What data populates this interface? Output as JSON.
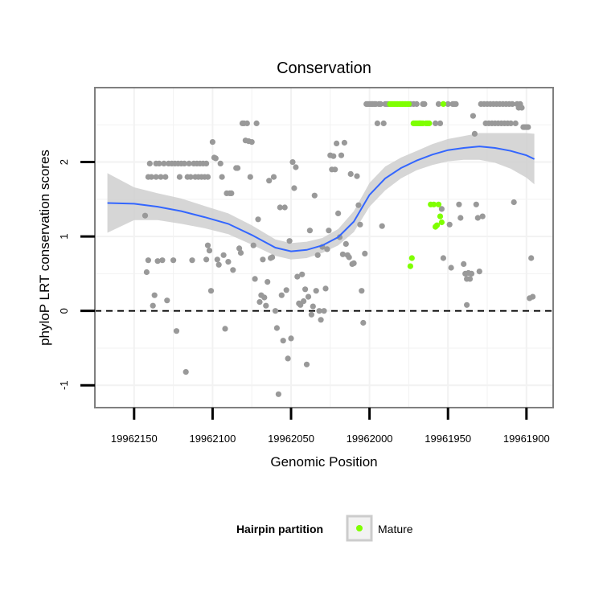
{
  "chart_data": {
    "type": "scatter",
    "title": "Conservation",
    "xlabel": "Genomic Position",
    "ylabel": "phyloP LRT conservation scores",
    "x_reversed": true,
    "xlim": [
      19962175,
      19961883
    ],
    "ylim": [
      -1.3,
      3.0
    ],
    "x_ticks": [
      19962150,
      19962100,
      19962050,
      19962000,
      19961950,
      19961900
    ],
    "x_tick_labels": [
      "19962150",
      "19962100",
      "19962050",
      "19962000",
      "19961950",
      "19961900"
    ],
    "y_ticks": [
      -1,
      0,
      1,
      2
    ],
    "y_tick_labels": [
      "-1",
      "0",
      "1",
      "2"
    ],
    "reference_line": {
      "y": 0,
      "style": "dashed"
    },
    "grid": true,
    "legend": {
      "title": "Hairpin partition",
      "position": "bottom",
      "entries": [
        {
          "label": "Mature",
          "color": "#7fff00"
        }
      ]
    },
    "colors": {
      "other_points": "#999999",
      "mature_points": "#7fff00",
      "smooth_line": "#3366ff",
      "ribbon": "#cccccc",
      "panel_border": "#7f7f7f",
      "grid": "#f2f2f2"
    },
    "series": [
      {
        "type": "scatter",
        "color": "#999999",
        "points": [
          [
            19962143,
            1.28
          ],
          [
            19962142,
            0.52
          ],
          [
            19962141,
            1.8
          ],
          [
            19962141,
            0.68
          ],
          [
            19962140,
            1.98
          ],
          [
            19962139,
            1.8
          ],
          [
            19962138,
            0.07
          ],
          [
            19962137,
            0.21
          ],
          [
            19962136,
            1.98
          ],
          [
            19962136,
            1.8
          ],
          [
            19962135,
            0.67
          ],
          [
            19962134,
            1.98
          ],
          [
            19962133,
            1.8
          ],
          [
            19962132,
            0.68
          ],
          [
            19962131,
            1.98
          ],
          [
            19962130,
            1.8
          ],
          [
            19962129,
            0.14
          ],
          [
            19962128,
            1.98
          ],
          [
            19962126,
            1.98
          ],
          [
            19962125,
            0.68
          ],
          [
            19962124,
            1.98
          ],
          [
            19962123,
            -0.27
          ],
          [
            19962122,
            1.98
          ],
          [
            19962121,
            1.8
          ],
          [
            19962120,
            1.98
          ],
          [
            19962118,
            1.98
          ],
          [
            19962117,
            -0.82
          ],
          [
            19962116,
            1.8
          ],
          [
            19962115,
            1.98
          ],
          [
            19962114,
            1.8
          ],
          [
            19962113,
            0.68
          ],
          [
            19962112,
            1.98
          ],
          [
            19962111,
            1.8
          ],
          [
            19962110,
            1.98
          ],
          [
            19962109,
            1.8
          ],
          [
            19962108,
            1.98
          ],
          [
            19962107,
            1.8
          ],
          [
            19962106,
            1.98
          ],
          [
            19962105,
            1.8
          ],
          [
            19962104,
            0.69
          ],
          [
            19962104,
            1.98
          ],
          [
            19962103,
            0.88
          ],
          [
            19962103,
            1.8
          ],
          [
            19962102,
            0.81
          ],
          [
            19962101,
            0.27
          ],
          [
            19962100,
            2.27
          ],
          [
            19962099,
            2.06
          ],
          [
            19962098,
            2.05
          ],
          [
            19962097,
            0.69
          ],
          [
            19962096,
            0.62
          ],
          [
            19962095,
            1.98
          ],
          [
            19962094,
            1.8
          ],
          [
            19962093,
            0.75
          ],
          [
            19962092,
            -0.24
          ],
          [
            19962091,
            1.58
          ],
          [
            19962090,
            0.66
          ],
          [
            19962089,
            1.58
          ],
          [
            19962088,
            1.58
          ],
          [
            19962087,
            0.55
          ],
          [
            19962085,
            1.92
          ],
          [
            19962084,
            1.92
          ],
          [
            19962083,
            0.84
          ],
          [
            19962082,
            0.78
          ],
          [
            19962081,
            2.52
          ],
          [
            19962080,
            2.52
          ],
          [
            19962079,
            2.29
          ],
          [
            19962078,
            2.52
          ],
          [
            19962077,
            2.28
          ],
          [
            19962076,
            1.8
          ],
          [
            19962075,
            2.27
          ],
          [
            19962074,
            0.88
          ],
          [
            19962073,
            0.43
          ],
          [
            19962072,
            2.52
          ],
          [
            19962071,
            1.23
          ],
          [
            19962070,
            0.12
          ],
          [
            19962069,
            0.21
          ],
          [
            19962068,
            0.69
          ],
          [
            19962067,
            0.18
          ],
          [
            19962066,
            0.07
          ],
          [
            19962065,
            0.39
          ],
          [
            19962064,
            1.75
          ],
          [
            19962063,
            0.71
          ],
          [
            19962062,
            0.72
          ],
          [
            19962061,
            1.8
          ],
          [
            19962060,
            0.0
          ],
          [
            19962059,
            -0.23
          ],
          [
            19962058,
            -1.12
          ],
          [
            19962057,
            1.39
          ],
          [
            19962056,
            0.21
          ],
          [
            19962055,
            -0.4
          ],
          [
            19962054,
            1.39
          ],
          [
            19962053,
            0.28
          ],
          [
            19962052,
            -0.64
          ],
          [
            19962051,
            0.94
          ],
          [
            19962050,
            -0.37
          ],
          [
            19962049,
            2.0
          ],
          [
            19962048,
            1.65
          ],
          [
            19962047,
            1.93
          ],
          [
            19962046,
            0.46
          ],
          [
            19962045,
            0.1
          ],
          [
            19962044,
            0.08
          ],
          [
            19962043,
            0.49
          ],
          [
            19962042,
            0.13
          ],
          [
            19962041,
            0.29
          ],
          [
            19962040,
            -0.72
          ],
          [
            19962039,
            0.19
          ],
          [
            19962038,
            1.08
          ],
          [
            19962037,
            -0.05
          ],
          [
            19962036,
            0.06
          ],
          [
            19962035,
            1.55
          ],
          [
            19962034,
            0.27
          ],
          [
            19962033,
            0.75
          ],
          [
            19962032,
            0.0
          ],
          [
            19962031,
            -0.12
          ],
          [
            19962030,
            0.86
          ],
          [
            19962029,
            0.0
          ],
          [
            19962028,
            0.3
          ],
          [
            19962027,
            0.83
          ],
          [
            19962026,
            1.08
          ],
          [
            19962025,
            2.09
          ],
          [
            19962024,
            1.9
          ],
          [
            19962023,
            2.08
          ],
          [
            19962022,
            1.9
          ],
          [
            19962021,
            2.25
          ],
          [
            19962020,
            1.31
          ],
          [
            19962019,
            0.99
          ],
          [
            19962018,
            2.09
          ],
          [
            19962017,
            0.76
          ],
          [
            19962016,
            2.26
          ],
          [
            19962015,
            0.9
          ],
          [
            19962014,
            0.75
          ],
          [
            19962013,
            0.72
          ],
          [
            19962012,
            1.84
          ],
          [
            19962011,
            0.63
          ],
          [
            19962010,
            0.64
          ],
          [
            19962008,
            1.81
          ],
          [
            19962007,
            1.42
          ],
          [
            19962006,
            1.16
          ],
          [
            19962005,
            0.27
          ],
          [
            19962004,
            -0.16
          ],
          [
            19962003,
            0.77
          ],
          [
            19962002,
            2.78
          ],
          [
            19962001,
            2.78
          ],
          [
            19962000,
            2.78
          ],
          [
            19961999,
            2.78
          ],
          [
            19961998,
            2.78
          ],
          [
            19961997,
            2.78
          ],
          [
            19961996,
            2.78
          ],
          [
            19961995,
            2.52
          ],
          [
            19961994,
            2.78
          ],
          [
            19961993,
            2.78
          ],
          [
            19961992,
            1.14
          ],
          [
            19961991,
            2.52
          ],
          [
            19961990,
            2.78
          ],
          [
            19961989,
            2.78
          ],
          [
            19961988,
            2.78
          ],
          [
            19961974,
            2.78
          ],
          [
            19961972,
            2.78
          ],
          [
            19961970,
            2.78
          ],
          [
            19961968,
            2.52
          ],
          [
            19961966,
            2.78
          ],
          [
            19961965,
            2.78
          ],
          [
            19961958,
            2.52
          ],
          [
            19961956,
            2.78
          ],
          [
            19961955,
            2.52
          ],
          [
            19961954,
            1.37
          ],
          [
            19961953,
            0.71
          ],
          [
            19961950,
            2.78
          ],
          [
            19961949,
            1.16
          ],
          [
            19961948,
            0.58
          ],
          [
            19961947,
            2.78
          ],
          [
            19961946,
            2.78
          ],
          [
            19961945,
            2.78
          ],
          [
            19961943,
            1.43
          ],
          [
            19961942,
            1.25
          ],
          [
            19961940,
            0.63
          ],
          [
            19961939,
            0.5
          ],
          [
            19961938,
            0.08
          ],
          [
            19961938,
            0.43
          ],
          [
            19961937,
            0.51
          ],
          [
            19961936,
            0.43
          ],
          [
            19961935,
            0.5
          ],
          [
            19961934,
            2.62
          ],
          [
            19961933,
            2.38
          ],
          [
            19961932,
            1.43
          ],
          [
            19961931,
            1.25
          ],
          [
            19961930,
            0.53
          ],
          [
            19961929,
            2.78
          ],
          [
            19961928,
            1.27
          ],
          [
            19961927,
            2.78
          ],
          [
            19961926,
            2.52
          ],
          [
            19961925,
            2.78
          ],
          [
            19961924,
            2.52
          ],
          [
            19961923,
            2.78
          ],
          [
            19961922,
            2.52
          ],
          [
            19961921,
            2.78
          ],
          [
            19961920,
            2.52
          ],
          [
            19961919,
            2.78
          ],
          [
            19961918,
            2.52
          ],
          [
            19961917,
            2.78
          ],
          [
            19961916,
            2.52
          ],
          [
            19961915,
            2.78
          ],
          [
            19961914,
            2.52
          ],
          [
            19961913,
            2.78
          ],
          [
            19961912,
            2.52
          ],
          [
            19961911,
            2.78
          ],
          [
            19961910,
            2.52
          ],
          [
            19961909,
            2.78
          ],
          [
            19961908,
            1.46
          ],
          [
            19961907,
            2.52
          ],
          [
            19961906,
            2.78
          ],
          [
            19961905,
            2.73
          ],
          [
            19961904,
            2.78
          ],
          [
            19961903,
            2.73
          ],
          [
            19961902,
            2.47
          ],
          [
            19961901,
            2.47
          ],
          [
            19961900,
            2.47
          ],
          [
            19961899,
            2.47
          ],
          [
            19961898,
            0.17
          ],
          [
            19961897,
            0.71
          ],
          [
            19961896,
            0.19
          ]
        ]
      },
      {
        "name": "Mature",
        "type": "scatter",
        "color": "#7fff00",
        "points": [
          [
            19961987,
            2.78
          ],
          [
            19961986,
            2.78
          ],
          [
            19961985,
            2.78
          ],
          [
            19961984,
            2.78
          ],
          [
            19961983,
            2.78
          ],
          [
            19961982,
            2.78
          ],
          [
            19961981,
            2.78
          ],
          [
            19961980,
            2.78
          ],
          [
            19961979,
            2.78
          ],
          [
            19961978,
            2.78
          ],
          [
            19961977,
            2.78
          ],
          [
            19961976,
            2.78
          ],
          [
            19961975,
            2.78
          ],
          [
            19961974,
            0.6
          ],
          [
            19961973,
            0.71
          ],
          [
            19961972,
            2.52
          ],
          [
            19961971,
            2.52
          ],
          [
            19961970,
            2.52
          ],
          [
            19961969,
            2.52
          ],
          [
            19961968,
            2.52
          ],
          [
            19961967,
            2.52
          ],
          [
            19961966,
            2.52
          ],
          [
            19961964,
            2.52
          ],
          [
            19961963,
            2.52
          ],
          [
            19961962,
            2.52
          ],
          [
            19961961,
            1.43
          ],
          [
            19961959,
            1.43
          ],
          [
            19961958,
            1.13
          ],
          [
            19961957,
            1.15
          ],
          [
            19961956,
            1.43
          ],
          [
            19961955,
            1.27
          ],
          [
            19961954,
            1.19
          ],
          [
            19961953,
            2.78
          ]
        ]
      },
      {
        "type": "line",
        "color": "#3366ff",
        "x": [
          19962167,
          19962150,
          19962135,
          19962120,
          19962105,
          19962090,
          19962075,
          19962060,
          19962050,
          19962040,
          19962030,
          19962020,
          19962010,
          19962000,
          19961990,
          19961980,
          19961970,
          19961960,
          19961950,
          19961940,
          19961930,
          19961920,
          19961910,
          19961900,
          19961895
        ],
        "y": [
          1.45,
          1.44,
          1.4,
          1.34,
          1.26,
          1.17,
          1.02,
          0.85,
          0.8,
          0.82,
          0.88,
          0.99,
          1.2,
          1.56,
          1.78,
          1.92,
          2.02,
          2.1,
          2.16,
          2.19,
          2.21,
          2.19,
          2.15,
          2.09,
          2.04
        ],
        "ci_lower": [
          1.05,
          1.22,
          1.22,
          1.17,
          1.11,
          1.03,
          0.89,
          0.74,
          0.69,
          0.71,
          0.78,
          0.88,
          1.06,
          1.4,
          1.62,
          1.78,
          1.89,
          1.96,
          2.01,
          2.03,
          2.03,
          1.99,
          1.91,
          1.79,
          1.7
        ],
        "ci_upper": [
          1.85,
          1.66,
          1.58,
          1.51,
          1.41,
          1.31,
          1.15,
          0.96,
          0.91,
          0.93,
          0.98,
          1.1,
          1.34,
          1.72,
          1.94,
          2.06,
          2.15,
          2.24,
          2.31,
          2.35,
          2.39,
          2.39,
          2.39,
          2.39,
          2.38
        ]
      }
    ]
  }
}
